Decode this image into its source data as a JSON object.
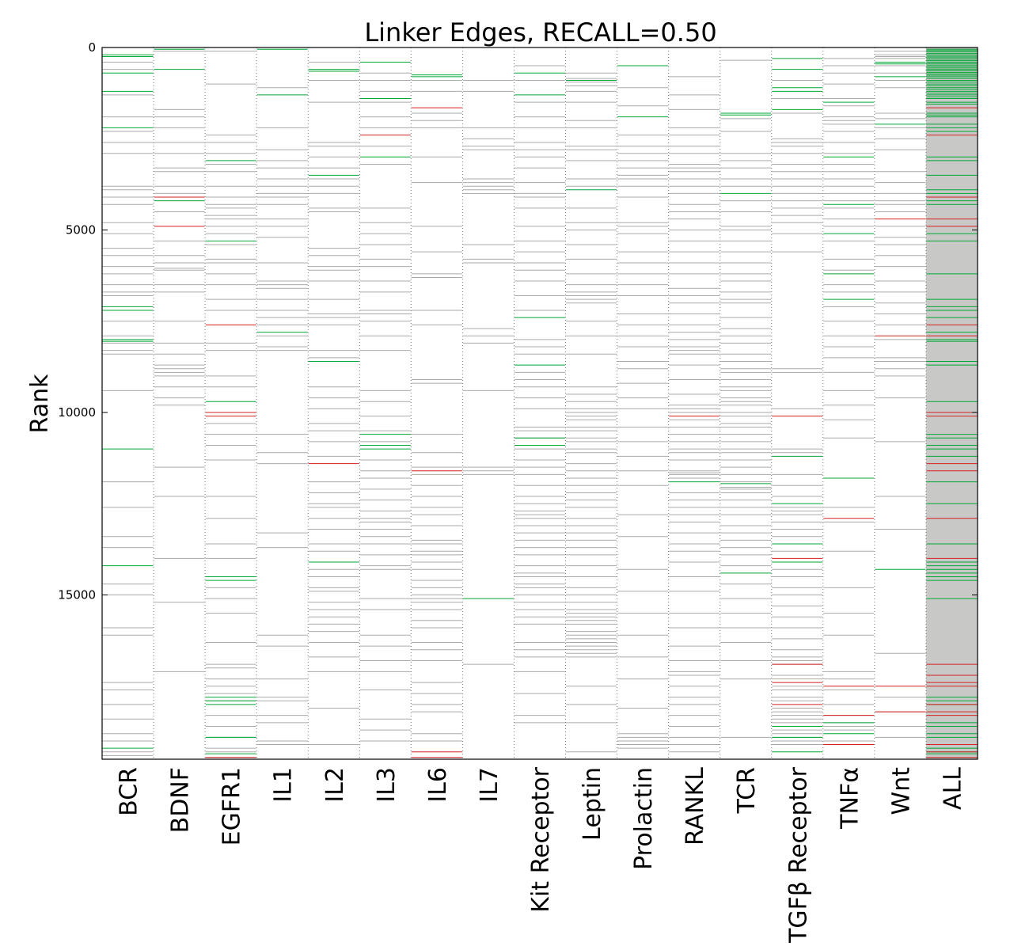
{
  "chart_data": {
    "type": "table",
    "title": "Linker Edges, RECALL=0.50",
    "ylabel": "Rank",
    "xlabel": "",
    "ylim": [
      0,
      19500
    ],
    "y_inverted": true,
    "y_ticks": [
      0,
      5000,
      10000,
      15000
    ],
    "grid": "vertical dotted",
    "colors": {
      "gray": "#aaaaaa",
      "green": "#00a835",
      "red": "#d42020",
      "all_background": "#c8c9c7"
    },
    "categories": [
      "BCR",
      "BDNF",
      "EGFR1",
      "IL1",
      "IL2",
      "IL3",
      "IL6",
      "IL7",
      "Kit Receptor",
      "Leptin",
      "Prolactin",
      "RANKL",
      "TCR",
      "TGFβ Receptor",
      "TNFα",
      "Wnt",
      "ALL"
    ],
    "series": [
      {
        "category": "BCR",
        "gray": [
          400,
          600,
          1300,
          1900,
          2300,
          2600,
          2900,
          3800,
          3900,
          4100,
          4300,
          4800,
          5100,
          5500,
          5700,
          6000,
          6200,
          6500,
          6700,
          6800,
          7200,
          7500,
          7900,
          8100,
          8300,
          8400,
          9400,
          11900,
          12600,
          13400,
          13700,
          14700,
          15000,
          15900,
          16100,
          17400,
          17600,
          18000,
          18400,
          18800,
          19000,
          19300,
          19400
        ],
        "green": [
          200,
          250,
          700,
          1200,
          2200,
          7100,
          7200,
          8000,
          8050,
          11000,
          14200,
          19200
        ],
        "red": []
      },
      {
        "category": "BDNF",
        "gray": [
          100,
          1700,
          1900,
          2200,
          2600,
          2900,
          3300,
          3400,
          3800,
          4000,
          4500,
          5300,
          5700,
          5900,
          6050,
          6100,
          6500,
          6700,
          7500,
          8100,
          8400,
          8700,
          8800,
          8900,
          9000,
          9300,
          9600,
          9800,
          11500,
          12300,
          14000,
          15200,
          17100
        ],
        "green": [
          50,
          600,
          4200
        ],
        "red": [
          4100,
          4900
        ]
      },
      {
        "category": "EGFR1",
        "gray": [
          100,
          1000,
          2400,
          2600,
          2900,
          3200,
          3400,
          3800,
          4100,
          4300,
          4400,
          4600,
          4700,
          4900,
          5100,
          5400,
          5800,
          5900,
          6200,
          6500,
          6900,
          7200,
          8100,
          8300,
          9000,
          9300,
          10300,
          10600,
          10900,
          11300,
          12300,
          12900,
          13600,
          14000,
          14800,
          15100,
          15500,
          16300,
          16900,
          17000,
          17300,
          17500,
          17700,
          17900,
          18300,
          18600,
          18900,
          19200,
          19300,
          19450
        ],
        "green": [
          3100,
          5300,
          9700,
          14500,
          14600,
          17800,
          17900,
          18000,
          18900,
          19350
        ],
        "red": [
          7600,
          10000,
          10100,
          19450
        ]
      },
      {
        "category": "IL1",
        "gray": [
          1100,
          2200,
          2800,
          3100,
          3300,
          3600,
          3800,
          4000,
          4100,
          4300,
          4700,
          4900,
          5200,
          5900,
          6400,
          6500,
          6600,
          6900,
          7200,
          7400,
          7600,
          7900,
          8200,
          8300,
          10600,
          11100,
          11400,
          13300,
          13700,
          16100,
          16400,
          17300,
          17800,
          17900,
          18300,
          18500,
          19000,
          19100
        ],
        "green": [
          50,
          1300,
          7800
        ],
        "red": []
      },
      {
        "category": "IL2",
        "gray": [
          400,
          900,
          1500,
          2600,
          2700,
          3000,
          3300,
          3600,
          3800,
          4000,
          4400,
          4500,
          5500,
          5700,
          6000,
          6100,
          6400,
          6900,
          7300,
          7400,
          7600,
          8300,
          8500,
          9300,
          9600,
          9900,
          10300,
          10500,
          10800,
          11200,
          11900,
          12200,
          12500,
          12600,
          12900,
          13200,
          13600,
          13800,
          14300,
          14500,
          14800,
          14900,
          15200,
          15400,
          15600,
          15800,
          16000,
          16300,
          16700,
          17100,
          18100,
          19100
        ],
        "green": [
          600,
          650,
          3500,
          8600,
          14100
        ],
        "red": [
          11400
        ]
      },
      {
        "category": "IL3",
        "gray": [
          700,
          900,
          1200,
          1500,
          1900,
          2200,
          2700,
          3200,
          4400,
          4800,
          5100,
          5400,
          5800,
          6000,
          6400,
          6700,
          7200,
          7300,
          7500,
          7900,
          8300,
          9400,
          9700,
          10100,
          10500,
          10800,
          11300,
          11600,
          11800,
          12100,
          12400,
          12700,
          12900,
          13000,
          13200,
          13400,
          13600,
          13900,
          14200,
          14300,
          15100,
          15400,
          16100,
          16400,
          16800,
          17100,
          17600,
          18400,
          18700,
          19000
        ],
        "green": [
          400,
          1400,
          3000,
          10600,
          10900,
          11000
        ],
        "red": [
          2400
        ]
      },
      {
        "category": "IL6",
        "gray": [
          900,
          1200,
          1800,
          2000,
          2200,
          3000,
          3700,
          4900,
          5600,
          6200,
          6300,
          7200,
          7600,
          9100,
          9200,
          10600,
          11100,
          11500,
          11700,
          12000,
          12300,
          12600,
          12800,
          13100,
          13500,
          13600,
          13800,
          13900,
          14100,
          14300,
          14600,
          14800,
          15000,
          15100,
          15200,
          15400,
          15700,
          15900,
          16300,
          16500,
          16800,
          17400,
          17700,
          18000,
          18200,
          18800,
          19000
        ],
        "green": [
          750,
          800
        ],
        "red": [
          1650,
          11600,
          19300,
          19450
        ]
      },
      {
        "category": "IL7",
        "gray": [
          900,
          1200,
          2200,
          2500,
          2700,
          2800,
          3600,
          3700,
          3800,
          3900,
          4000,
          5400,
          5800,
          5900,
          7700,
          7900,
          8100,
          9400,
          11500,
          11600,
          11700,
          16900
        ],
        "green": [
          15100
        ],
        "red": []
      },
      {
        "category": "Kit Receptor",
        "gray": [
          500,
          900,
          1500,
          1900,
          2200,
          2600,
          2800,
          3000,
          3300,
          3700,
          4000,
          4100,
          4400,
          4900,
          5300,
          5600,
          5900,
          6100,
          6400,
          6800,
          7200,
          8000,
          8200,
          8400,
          8900,
          9100,
          9300,
          9600,
          9900,
          10400,
          10500,
          10700,
          11000,
          11300,
          11500,
          11700,
          12000,
          12300,
          12500,
          12700,
          12800,
          12900,
          13100,
          13300,
          13500,
          13700,
          13900,
          14200,
          14400,
          14500,
          14700,
          14800,
          15000,
          15200,
          15400,
          15600,
          15800,
          16300,
          16500,
          16700,
          17100,
          17700,
          18300,
          18500
        ],
        "green": [
          700,
          1300,
          7400,
          8700,
          10700,
          10900
        ],
        "red": []
      },
      {
        "category": "Leptin",
        "gray": [
          700,
          850,
          950,
          1050,
          1200,
          1500,
          2000,
          2200,
          2700,
          2800,
          3100,
          3600,
          3800,
          4400,
          4800,
          5000,
          5400,
          5800,
          6200,
          6500,
          6700,
          6800,
          6900,
          7000,
          7500,
          7900,
          8400,
          9300,
          9500,
          9700,
          9900,
          10000,
          10100,
          10200,
          10400,
          10500,
          10700,
          10800,
          11000,
          11100,
          11400,
          11600,
          11800,
          12000,
          12200,
          12400,
          12600,
          12900,
          13100,
          13300,
          13500,
          13700,
          13900,
          14200,
          14500,
          14800,
          15000,
          15200,
          15400,
          15500,
          15600,
          15700,
          15800,
          16000,
          16100,
          16200,
          16300,
          16400,
          16500,
          16600,
          16700,
          17500,
          18000,
          18500,
          19300
        ],
        "green": [
          900,
          3900
        ],
        "red": []
      },
      {
        "category": "Prolactin",
        "gray": [
          1100,
          1600,
          2400,
          2700,
          2900,
          3100,
          3300,
          3500,
          3600,
          3800,
          4100,
          4800,
          4900,
          5100,
          5600,
          5900,
          6200,
          6500,
          6800,
          7300,
          7600,
          7900,
          8200,
          8600,
          8800,
          9200,
          9600,
          9900,
          10400,
          10800,
          11200,
          11600,
          12000,
          12800,
          13400,
          14300,
          14900,
          15500,
          16100,
          16700,
          17300,
          18100,
          18800,
          18900,
          19000,
          19100,
          19200
        ],
        "green": [
          500,
          1900
        ],
        "red": []
      },
      {
        "category": "RANKL",
        "gray": [
          800,
          1300,
          1700,
          2200,
          2400,
          2700,
          2900,
          3200,
          3300,
          3400,
          3600,
          3800,
          4000,
          4300,
          4500,
          4700,
          5000,
          5300,
          5600,
          5900,
          6200,
          6600,
          6800,
          7000,
          7300,
          7600,
          7800,
          8000,
          8200,
          8300,
          8400,
          8700,
          9100,
          9500,
          9800,
          9900,
          10000,
          10200,
          10400,
          10600,
          10800,
          11000,
          11100,
          11300,
          11600,
          11650,
          11700,
          11800,
          12200,
          12400,
          12600,
          12800,
          13000,
          13300,
          13600,
          13800,
          14100,
          14500,
          14900,
          15500,
          15900,
          16400,
          16800,
          17100,
          17200,
          17500,
          17800,
          18000,
          18300,
          18600,
          18900,
          19100,
          19300
        ],
        "green": [
          11900
        ],
        "red": [
          10100
        ]
      },
      {
        "category": "TCR",
        "gray": [
          350,
          1950,
          2300,
          2900,
          3100,
          3300,
          3600,
          3800,
          4200,
          4500,
          4900,
          5000,
          5300,
          5600,
          5900,
          6200,
          6400,
          6700,
          6900,
          7000,
          7400,
          7700,
          7900,
          8100,
          8400,
          8600,
          8800,
          8900,
          9100,
          9300,
          9400,
          9600,
          9700,
          9800,
          10000,
          10100,
          10300,
          10400,
          10600,
          10800,
          11000,
          11100,
          11300,
          11500,
          11700,
          11900,
          12050,
          12100,
          12200,
          12400,
          12600,
          12800,
          13100,
          13300,
          13500,
          13700,
          13900,
          14200,
          14700,
          15100,
          15500,
          15900,
          16300,
          16800,
          17300,
          18900
        ],
        "green": [
          1800,
          1850,
          4000,
          11950,
          14400
        ],
        "red": []
      },
      {
        "category": "TGFβ Receptor",
        "gray": [
          900,
          1400,
          1800,
          2500,
          2600,
          2700,
          2900,
          3200,
          3400,
          3600,
          3800,
          4000,
          4200,
          4400,
          4600,
          4800,
          5100,
          5600,
          8800,
          8900,
          9900,
          11000,
          11100,
          11700,
          12000,
          12300,
          12600,
          12700,
          12800,
          13000,
          13200,
          13400,
          13600,
          13800,
          14100,
          14300,
          14500,
          14800,
          15000,
          15300,
          15600,
          15900,
          16200,
          16500,
          16700,
          16800,
          16900,
          17200,
          17300,
          17500,
          17600,
          17800,
          17900,
          18100,
          18200,
          18300,
          18400,
          18500,
          18700,
          18800,
          18900,
          19000,
          19100
        ],
        "green": [
          300,
          600,
          1100,
          1200,
          1700,
          11200,
          12500,
          13600,
          14100,
          18600,
          18900,
          19300
        ],
        "red": [
          10100,
          14000,
          16900,
          17400,
          18000
        ]
      },
      {
        "category": "TNFα",
        "gray": [
          300,
          500,
          700,
          1000,
          1400,
          1600,
          1900,
          2000,
          2100,
          2300,
          2600,
          2900,
          3200,
          3400,
          3600,
          3800,
          4000,
          4200,
          4400,
          4700,
          4900,
          5300,
          5800,
          6100,
          6500,
          6700,
          7100,
          7500,
          7900,
          8200,
          8500,
          8900,
          9400,
          9800,
          10200,
          10700,
          12600,
          13000,
          13800,
          14800,
          15500,
          16100,
          17100,
          17300,
          17600,
          18000,
          18300,
          18500,
          18600,
          18700,
          19000,
          19100
        ],
        "green": [
          1500,
          3000,
          4300,
          5100,
          6200,
          6900,
          11800,
          18500,
          18800
        ],
        "red": [
          12900,
          17500,
          18300,
          19100
        ]
      },
      {
        "category": "Wnt",
        "gray": [
          100,
          200,
          250,
          300,
          400,
          500,
          700,
          900,
          1100,
          1800,
          1950,
          2200,
          2500,
          2800,
          3400,
          3700,
          4000,
          4200,
          4300,
          4500,
          4900,
          5200,
          5400,
          5700,
          6000,
          6400,
          6700,
          7000,
          7300,
          7600,
          8000,
          8500,
          8600,
          8800,
          9000,
          9600,
          10800,
          12300,
          13200,
          16600,
          17800,
          18200,
          18600,
          18900
        ],
        "green": [
          400,
          450,
          800,
          2100,
          14300
        ],
        "red": [
          4700,
          7900,
          17500,
          18200
        ]
      },
      {
        "category": "ALL",
        "gray": [],
        "green": [
          50,
          80,
          120,
          160,
          200,
          240,
          280,
          320,
          360,
          400,
          440,
          480,
          520,
          560,
          600,
          640,
          680,
          720,
          760,
          800,
          850,
          900,
          950,
          1000,
          1050,
          1100,
          1150,
          1200,
          1250,
          1300,
          1350,
          1400,
          1500,
          1550,
          1800,
          1850,
          1900,
          2100,
          2200,
          2300,
          3000,
          3100,
          3500,
          3900,
          4000,
          4200,
          4300,
          5100,
          5300,
          6200,
          6900,
          7100,
          7200,
          7400,
          7800,
          8000,
          8050,
          8600,
          8700,
          9700,
          10600,
          10700,
          10900,
          11000,
          11200,
          11900,
          12500,
          13600,
          14100,
          14200,
          14300,
          14400,
          14500,
          14600,
          15100,
          17800,
          17900,
          18000,
          18500,
          18600,
          18800,
          18900,
          19200,
          19300,
          19350
        ],
        "red": [
          1650,
          2400,
          4100,
          4700,
          4900,
          7600,
          7900,
          10000,
          10100,
          11400,
          11600,
          12900,
          14000,
          16900,
          17200,
          17400,
          17500,
          18000,
          18200,
          18300,
          19100,
          19300,
          19450
        ]
      }
    ]
  }
}
